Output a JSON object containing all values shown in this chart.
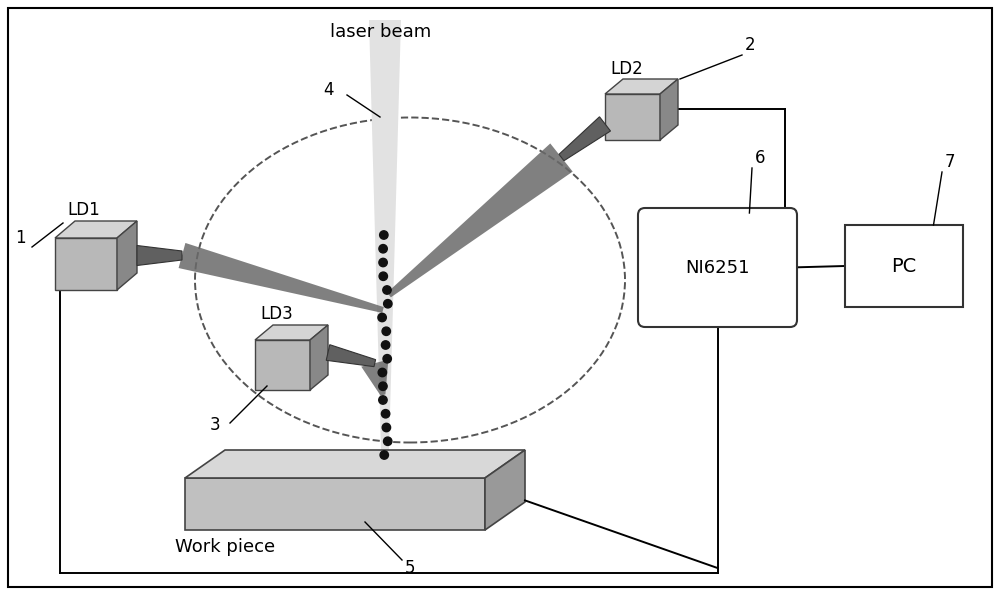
{
  "bg_color": "#ffffff",
  "line_color": "#000000",
  "gray_front": "#b8b8b8",
  "gray_top": "#d4d4d4",
  "gray_side": "#888888",
  "gray_nozzle": "#606060",
  "gray_beam_cone": "#707070",
  "gray_wp_front": "#c0c0c0",
  "gray_wp_top": "#d8d8d8",
  "gray_wp_side": "#989898",
  "laser_gray": "#d8d8d8",
  "plume_dot": "#111111",
  "dashed_color": "#555555",
  "label_1": "1",
  "label_2": "2",
  "label_3": "3",
  "label_4": "4",
  "label_5": "5",
  "label_6": "6",
  "label_7": "7",
  "label_ld1": "LD1",
  "label_ld2": "LD2",
  "label_ld3": "LD3",
  "label_ni": "NI6251",
  "label_pc": "PC",
  "label_laser": "laser beam",
  "label_wp": "Work piece"
}
